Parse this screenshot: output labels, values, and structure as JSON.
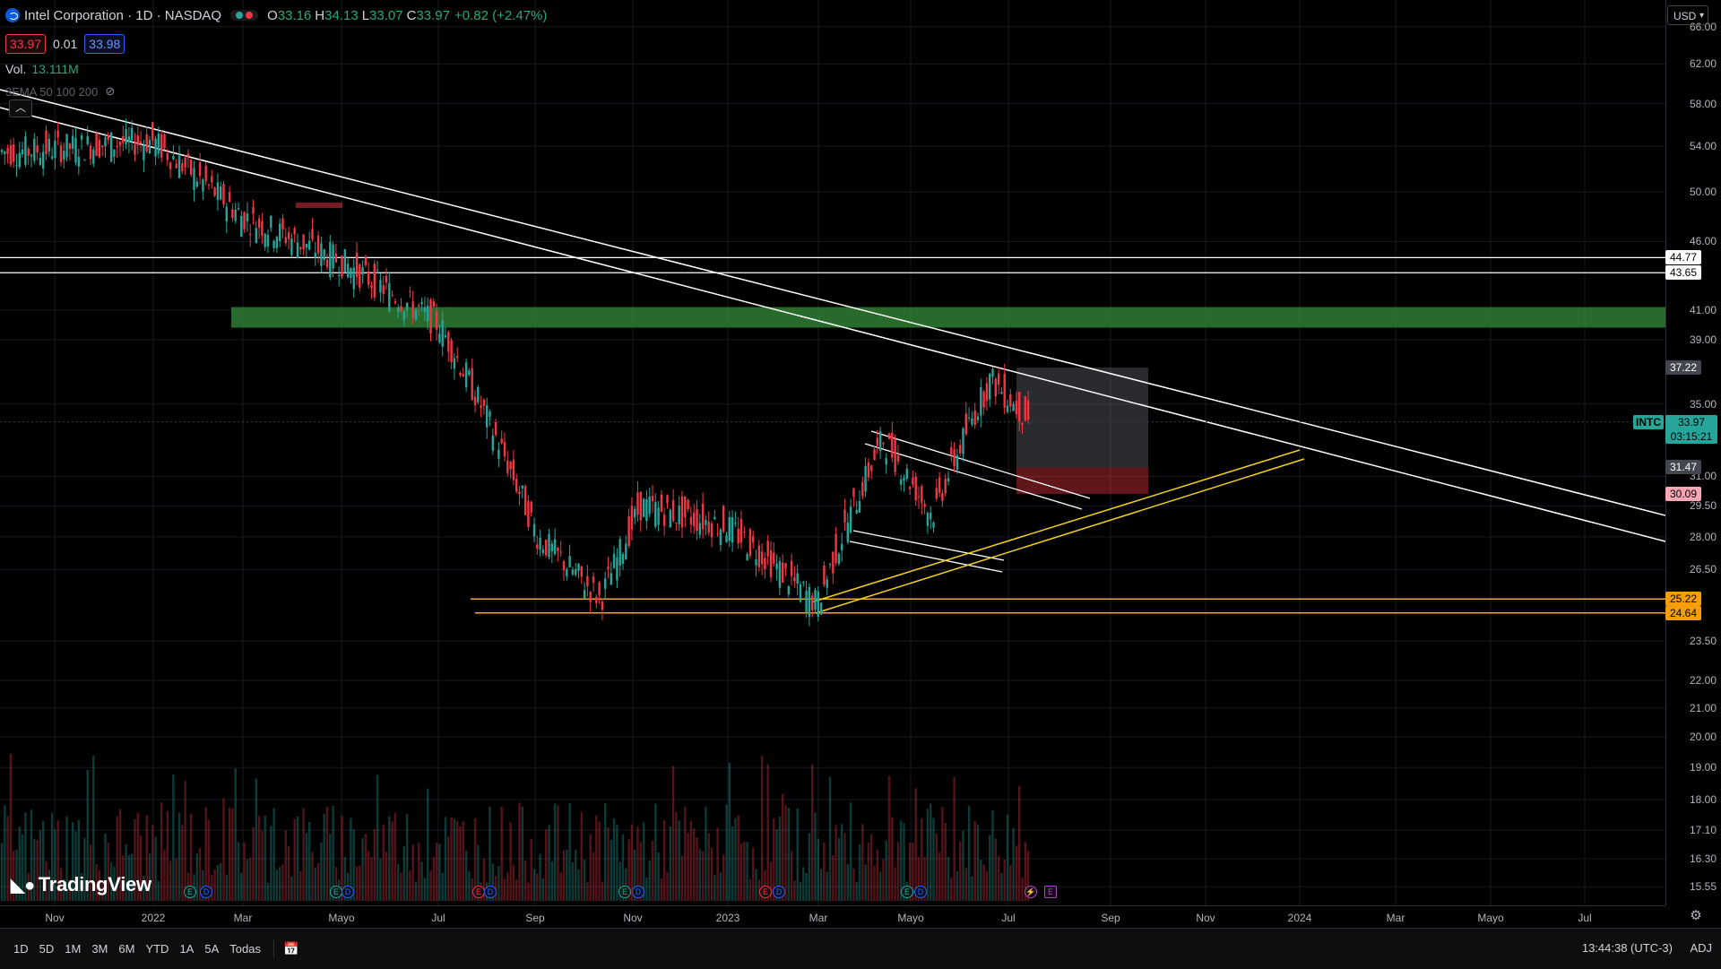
{
  "legend": {
    "title": "Intel Corporation · 1D · NASDAQ",
    "ohlc": {
      "o_label": "O",
      "o": "33.16",
      "h_label": "H",
      "h": "34.13",
      "l_label": "L",
      "l": "33.07",
      "c_label": "C",
      "c": "33.97",
      "change": "+0.82 (+2.47%)"
    },
    "sell": "33.97",
    "spread": "0.01",
    "buy": "33.98",
    "vol_label": "Vol.",
    "vol_value": "13.111M",
    "ema_label": "3EMA 50 100 200"
  },
  "price_axis": {
    "currency": "USD",
    "ticks": [
      {
        "v": 66,
        "t": "66.00"
      },
      {
        "v": 62,
        "t": "62.00"
      },
      {
        "v": 58,
        "t": "58.00"
      },
      {
        "v": 54,
        "t": "54.00"
      },
      {
        "v": 50,
        "t": "50.00"
      },
      {
        "v": 46,
        "t": "46.00"
      },
      {
        "v": 41,
        "t": "41.00"
      },
      {
        "v": 39,
        "t": "39.00"
      },
      {
        "v": 35,
        "t": "35.00"
      },
      {
        "v": 31,
        "t": "31.00"
      },
      {
        "v": 29.5,
        "t": "29.50"
      },
      {
        "v": 28,
        "t": "28.00"
      },
      {
        "v": 26.5,
        "t": "26.50"
      },
      {
        "v": 23.5,
        "t": "23.50"
      },
      {
        "v": 22,
        "t": "22.00"
      },
      {
        "v": 21,
        "t": "21.00"
      },
      {
        "v": 20,
        "t": "20.00"
      },
      {
        "v": 19,
        "t": "19.00"
      },
      {
        "v": 18,
        "t": "18.00"
      },
      {
        "v": 17.1,
        "t": "17.10"
      },
      {
        "v": 16.3,
        "t": "16.30"
      },
      {
        "v": 15.55,
        "t": "15.55"
      }
    ],
    "labels": [
      {
        "v": 44.77,
        "t": "44.77",
        "bg": "#ffffff",
        "fg": "#000000"
      },
      {
        "v": 43.65,
        "t": "43.65",
        "bg": "#ffffff",
        "fg": "#000000"
      },
      {
        "v": 37.22,
        "t": "37.22",
        "bg": "#434651",
        "fg": "#ffffff"
      },
      {
        "v": 31.47,
        "t": "31.47",
        "bg": "#434651",
        "fg": "#ffffff"
      },
      {
        "v": 30.09,
        "t": "30.09",
        "bg": "#f7a7b4",
        "fg": "#000000"
      },
      {
        "v": 25.22,
        "t": "25.22",
        "bg": "#f59d0b",
        "fg": "#000000"
      },
      {
        "v": 24.64,
        "t": "24.64",
        "bg": "#f59d0b",
        "fg": "#000000"
      }
    ],
    "current": {
      "symbol": "INTC",
      "price": "33.97",
      "countdown": "03:15:21",
      "color": "#26a69a"
    }
  },
  "time_axis": {
    "ticks": [
      "Nov",
      "2022",
      "Mar",
      "Mayo",
      "Jul",
      "Sep",
      "Nov",
      "2023",
      "Mar",
      "Mayo",
      "Jul",
      "Sep",
      "Nov",
      "2024",
      "Mar",
      "Mayo",
      "Jul"
    ]
  },
  "chart_data": {
    "type": "line",
    "x": [
      "Nov 2021",
      "Ene 2022",
      "Mar 2022",
      "May 2022",
      "Jul 2022",
      "Sep 2022",
      "Oct 2022",
      "Nov 2022",
      "Ene 2023",
      "Mar 2023",
      "Abr 2023",
      "May 2023",
      "Jun 2023",
      "Jul 2023"
    ],
    "y": [
      53.5,
      54.5,
      48,
      44.5,
      40,
      28,
      25.2,
      29.5,
      28.5,
      25,
      33,
      29,
      36.5,
      33.97
    ],
    "ylim": [
      15.3,
      68
    ],
    "scale": "log",
    "grid": true,
    "drawings": {
      "horizontal": [
        44.77,
        43.65
      ],
      "support": [
        25.22,
        24.64
      ],
      "zone_green": [
        39.8,
        41.2
      ],
      "position": {
        "target": 37.22,
        "entry": 31.47,
        "stop": 30.09
      }
    }
  },
  "watermark": "TradingView",
  "bottom": {
    "ranges": [
      "1D",
      "5D",
      "1M",
      "3M",
      "6M",
      "YTD",
      "1A",
      "5A",
      "Todas"
    ],
    "clock": "13:44:38 (UTC-3)",
    "adj": "ADJ"
  },
  "colors": {
    "up": "#26a69a",
    "down": "#f23645",
    "line": "#ffffff",
    "support": "#f5a623",
    "zone": "#2e7d32"
  }
}
